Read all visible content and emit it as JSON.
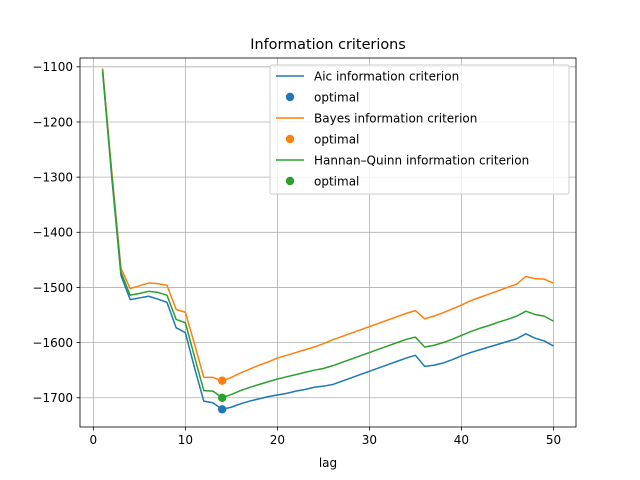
{
  "chart_data": {
    "type": "line",
    "title": "Information criterions",
    "xlabel": "lag",
    "ylabel": "",
    "xlim": [
      -1.45,
      52.45
    ],
    "ylim": [
      -1753,
      -1084
    ],
    "xticks": [
      0,
      10,
      20,
      30,
      40,
      50
    ],
    "yticks": [
      -1700,
      -1600,
      -1500,
      -1400,
      -1300,
      -1200,
      -1100
    ],
    "xtick_labels": [
      "0",
      "10",
      "20",
      "30",
      "40",
      "50"
    ],
    "ytick_labels": [
      "−1700",
      "−1600",
      "−1500",
      "−1400",
      "−1300",
      "−1200",
      "−1100"
    ],
    "grid": true,
    "legend_position": "top-right",
    "x": [
      1,
      2,
      3,
      4,
      5,
      6,
      7,
      8,
      9,
      10,
      11,
      12,
      13,
      14,
      15,
      16,
      17,
      18,
      19,
      20,
      21,
      22,
      23,
      24,
      25,
      26,
      27,
      28,
      29,
      30,
      31,
      32,
      33,
      34,
      35,
      36,
      37,
      38,
      39,
      40,
      41,
      42,
      43,
      44,
      45,
      46,
      47,
      48,
      49,
      50
    ],
    "series": [
      {
        "name": "Aic information criterion",
        "color": "#1f77b4",
        "values": [
          -1108,
          -1300,
          -1478,
          -1522,
          -1519,
          -1516,
          -1521,
          -1527,
          -1573,
          -1582,
          -1646,
          -1706,
          -1709,
          -1721,
          -1717,
          -1711,
          -1706,
          -1702,
          -1698,
          -1695,
          -1692,
          -1688,
          -1685,
          -1681,
          -1679,
          -1676,
          -1670,
          -1664,
          -1658,
          -1652,
          -1646,
          -1640,
          -1634,
          -1628,
          -1623,
          -1643,
          -1641,
          -1637,
          -1631,
          -1624,
          -1618,
          -1613,
          -1608,
          -1603,
          -1598,
          -1593,
          -1584,
          -1592,
          -1597,
          -1606
        ],
        "optimal": {
          "label": "optimal",
          "x": 14,
          "y": -1721
        }
      },
      {
        "name": "Bayes information criterion",
        "color": "#ff7f0e",
        "values": [
          -1103,
          -1290,
          -1465,
          -1502,
          -1497,
          -1492,
          -1493,
          -1496,
          -1540,
          -1545,
          -1603,
          -1663,
          -1663,
          -1670,
          -1663,
          -1655,
          -1648,
          -1641,
          -1635,
          -1628,
          -1623,
          -1618,
          -1613,
          -1608,
          -1602,
          -1595,
          -1589,
          -1583,
          -1577,
          -1571,
          -1565,
          -1559,
          -1553,
          -1547,
          -1542,
          -1557,
          -1552,
          -1546,
          -1539,
          -1532,
          -1524,
          -1518,
          -1512,
          -1506,
          -1500,
          -1494,
          -1480,
          -1484,
          -1485,
          -1492
        ],
        "optimal": {
          "label": "optimal",
          "x": 14,
          "y": -1669
        }
      },
      {
        "name": "Hannan–Quinn information criterion",
        "color": "#2ca02c",
        "values": [
          -1105,
          -1295,
          -1472,
          -1514,
          -1511,
          -1507,
          -1509,
          -1514,
          -1558,
          -1564,
          -1626,
          -1687,
          -1688,
          -1700,
          -1694,
          -1687,
          -1681,
          -1676,
          -1671,
          -1666,
          -1662,
          -1658,
          -1654,
          -1650,
          -1647,
          -1642,
          -1636,
          -1630,
          -1624,
          -1618,
          -1612,
          -1606,
          -1600,
          -1594,
          -1590,
          -1608,
          -1605,
          -1600,
          -1594,
          -1587,
          -1580,
          -1574,
          -1569,
          -1563,
          -1558,
          -1552,
          -1543,
          -1549,
          -1552,
          -1561
        ],
        "optimal": {
          "label": "optimal",
          "x": 14,
          "y": -1700
        }
      }
    ]
  }
}
